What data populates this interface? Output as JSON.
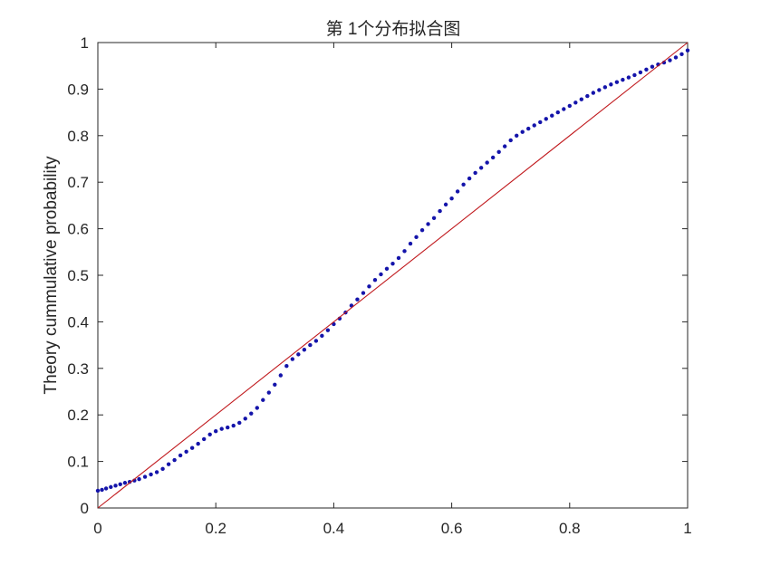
{
  "chart_data": {
    "type": "scatter",
    "title": "第 1个分布拟合图",
    "xlabel": "",
    "ylabel": "Theory cummulative probability",
    "xlim": [
      0,
      1
    ],
    "ylim": [
      0,
      1
    ],
    "x_ticks": [
      0,
      0.2,
      0.4,
      0.6,
      0.8,
      1
    ],
    "x_tick_labels": [
      "0",
      "0.2",
      "0.4",
      "0.6",
      "0.8",
      "1"
    ],
    "y_ticks": [
      0,
      0.1,
      0.2,
      0.3,
      0.4,
      0.5,
      0.6,
      0.7,
      0.8,
      0.9,
      1
    ],
    "y_tick_labels": [
      "0",
      "0.1",
      "0.2",
      "0.3",
      "0.4",
      "0.5",
      "0.6",
      "0.7",
      "0.8",
      "0.9",
      "1"
    ],
    "grid": false,
    "series": [
      {
        "kind": "points",
        "color": "#1414aa",
        "points": [
          [
            0.0,
            0.037
          ],
          [
            0.007,
            0.039
          ],
          [
            0.014,
            0.042
          ],
          [
            0.022,
            0.045
          ],
          [
            0.03,
            0.048
          ],
          [
            0.038,
            0.051
          ],
          [
            0.046,
            0.054
          ],
          [
            0.054,
            0.056
          ],
          [
            0.062,
            0.059
          ],
          [
            0.07,
            0.062
          ],
          [
            0.08,
            0.067
          ],
          [
            0.09,
            0.072
          ],
          [
            0.1,
            0.077
          ],
          [
            0.11,
            0.084
          ],
          [
            0.12,
            0.094
          ],
          [
            0.13,
            0.103
          ],
          [
            0.14,
            0.113
          ],
          [
            0.15,
            0.121
          ],
          [
            0.16,
            0.129
          ],
          [
            0.17,
            0.138
          ],
          [
            0.18,
            0.148
          ],
          [
            0.19,
            0.158
          ],
          [
            0.2,
            0.165
          ],
          [
            0.21,
            0.17
          ],
          [
            0.22,
            0.173
          ],
          [
            0.23,
            0.177
          ],
          [
            0.24,
            0.183
          ],
          [
            0.25,
            0.192
          ],
          [
            0.26,
            0.203
          ],
          [
            0.27,
            0.215
          ],
          [
            0.28,
            0.232
          ],
          [
            0.29,
            0.248
          ],
          [
            0.3,
            0.265
          ],
          [
            0.31,
            0.285
          ],
          [
            0.32,
            0.305
          ],
          [
            0.33,
            0.32
          ],
          [
            0.34,
            0.33
          ],
          [
            0.35,
            0.34
          ],
          [
            0.36,
            0.35
          ],
          [
            0.37,
            0.359
          ],
          [
            0.38,
            0.37
          ],
          [
            0.39,
            0.382
          ],
          [
            0.4,
            0.395
          ],
          [
            0.41,
            0.407
          ],
          [
            0.42,
            0.42
          ],
          [
            0.43,
            0.435
          ],
          [
            0.44,
            0.448
          ],
          [
            0.45,
            0.462
          ],
          [
            0.46,
            0.476
          ],
          [
            0.47,
            0.49
          ],
          [
            0.48,
            0.502
          ],
          [
            0.49,
            0.514
          ],
          [
            0.5,
            0.525
          ],
          [
            0.51,
            0.537
          ],
          [
            0.52,
            0.552
          ],
          [
            0.53,
            0.568
          ],
          [
            0.54,
            0.582
          ],
          [
            0.55,
            0.597
          ],
          [
            0.56,
            0.61
          ],
          [
            0.57,
            0.623
          ],
          [
            0.58,
            0.638
          ],
          [
            0.59,
            0.652
          ],
          [
            0.6,
            0.665
          ],
          [
            0.61,
            0.68
          ],
          [
            0.62,
            0.695
          ],
          [
            0.63,
            0.708
          ],
          [
            0.64,
            0.72
          ],
          [
            0.65,
            0.731
          ],
          [
            0.66,
            0.742
          ],
          [
            0.67,
            0.753
          ],
          [
            0.68,
            0.765
          ],
          [
            0.69,
            0.777
          ],
          [
            0.7,
            0.79
          ],
          [
            0.71,
            0.8
          ],
          [
            0.72,
            0.808
          ],
          [
            0.73,
            0.815
          ],
          [
            0.74,
            0.822
          ],
          [
            0.75,
            0.829
          ],
          [
            0.76,
            0.836
          ],
          [
            0.77,
            0.843
          ],
          [
            0.78,
            0.85
          ],
          [
            0.79,
            0.857
          ],
          [
            0.8,
            0.864
          ],
          [
            0.81,
            0.871
          ],
          [
            0.82,
            0.878
          ],
          [
            0.83,
            0.885
          ],
          [
            0.84,
            0.892
          ],
          [
            0.85,
            0.898
          ],
          [
            0.86,
            0.904
          ],
          [
            0.87,
            0.91
          ],
          [
            0.88,
            0.915
          ],
          [
            0.89,
            0.92
          ],
          [
            0.9,
            0.925
          ],
          [
            0.91,
            0.93
          ],
          [
            0.92,
            0.936
          ],
          [
            0.93,
            0.942
          ],
          [
            0.94,
            0.948
          ],
          [
            0.95,
            0.953
          ],
          [
            0.96,
            0.957
          ],
          [
            0.97,
            0.962
          ],
          [
            0.98,
            0.968
          ],
          [
            0.99,
            0.975
          ],
          [
            1.0,
            0.983
          ]
        ]
      },
      {
        "kind": "line",
        "color": "#c0181c",
        "points": [
          [
            0,
            0
          ],
          [
            1,
            1
          ]
        ]
      }
    ]
  }
}
